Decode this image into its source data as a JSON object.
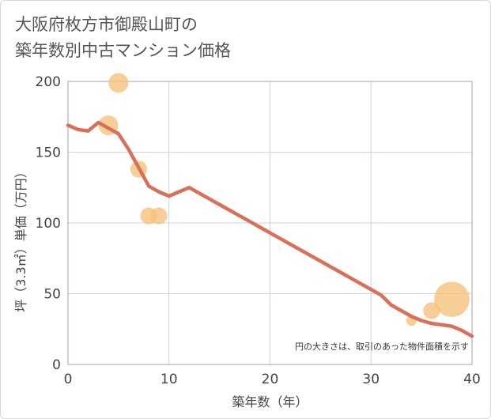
{
  "title_line1": "大阪府枚方市御殿山町の",
  "title_line2": "築年数別中古マンション価格",
  "chart_data": {
    "type": "scatter+line",
    "xlabel": "築年数（年）",
    "ylabel": "坪（3.3㎡）単価（万円）",
    "xlim": [
      0,
      40
    ],
    "ylim": [
      0,
      200
    ],
    "x_ticks": [
      0,
      10,
      20,
      30,
      40
    ],
    "y_ticks": [
      0,
      50,
      100,
      150,
      200
    ],
    "grid": true,
    "note": "円の大きさは、取引のあった物件面積を示す",
    "colors": {
      "line": "#d9705a",
      "bubble": "#f5c27a",
      "grid": "#c9d5e2",
      "frame": "#9aa5b2"
    },
    "trend_line": {
      "x": [
        0,
        1,
        2,
        3,
        4,
        5,
        6,
        7,
        8,
        9,
        10,
        11,
        12,
        13,
        14,
        15,
        16,
        17,
        18,
        19,
        20,
        21,
        22,
        23,
        24,
        25,
        26,
        27,
        28,
        29,
        30,
        31,
        32,
        33,
        34,
        35,
        36,
        37,
        38,
        39,
        40
      ],
      "y": [
        169,
        166,
        165,
        171,
        167,
        163,
        152,
        139,
        126,
        122,
        119,
        122,
        125,
        121,
        117,
        113,
        109,
        105,
        101,
        97,
        93,
        89,
        85,
        81,
        77,
        73,
        69,
        65,
        61,
        57,
        53,
        49,
        42,
        38,
        34,
        31,
        29,
        28,
        27,
        24,
        20
      ]
    },
    "bubbles": [
      {
        "x": 4,
        "y": 169,
        "size": 3
      },
      {
        "x": 5,
        "y": 199,
        "size": 3
      },
      {
        "x": 7,
        "y": 138,
        "size": 2
      },
      {
        "x": 8,
        "y": 105,
        "size": 2
      },
      {
        "x": 9,
        "y": 105,
        "size": 2
      },
      {
        "x": 34,
        "y": 31,
        "size": 0.5
      },
      {
        "x": 36,
        "y": 38,
        "size": 2
      },
      {
        "x": 38,
        "y": 46,
        "size": 12
      }
    ]
  }
}
